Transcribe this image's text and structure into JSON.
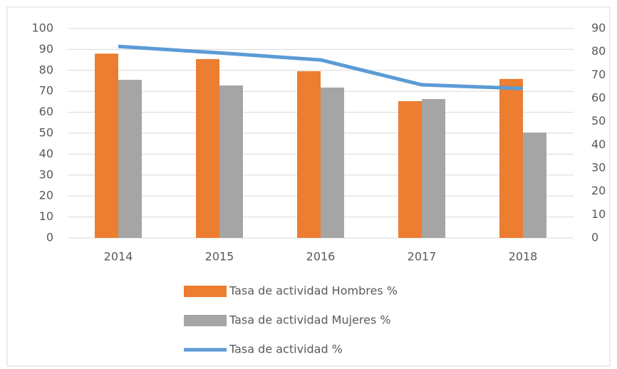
{
  "chart_data": {
    "type": "bar",
    "categories": [
      "2014",
      "2015",
      "2016",
      "2017",
      "2018"
    ],
    "series": [
      {
        "name": "Tasa de actividad Hombres %",
        "color": "#ed7d31",
        "type": "bar",
        "values": [
          88,
          85.4,
          79.6,
          65.3,
          75.9
        ]
      },
      {
        "name": "Tasa de actividad Mujeres %",
        "color": "#a5a5a5",
        "type": "bar",
        "values": [
          75.5,
          72.8,
          71.8,
          66.3,
          50.3
        ]
      },
      {
        "name": "Tasa de actividad %",
        "color": "#5b9bd5",
        "type": "line",
        "axis": "y2",
        "values": [
          82.3,
          79.5,
          76.5,
          65.8,
          64.2
        ]
      }
    ],
    "ylim": [
      0,
      100
    ],
    "yticks": [
      0,
      10,
      20,
      30,
      40,
      50,
      60,
      70,
      80,
      90,
      100
    ],
    "y2lim": [
      0,
      90
    ],
    "y2ticks": [
      0,
      10,
      20,
      30,
      40,
      50,
      60,
      70,
      80,
      90
    ],
    "grid": true,
    "legend": "bottom"
  }
}
